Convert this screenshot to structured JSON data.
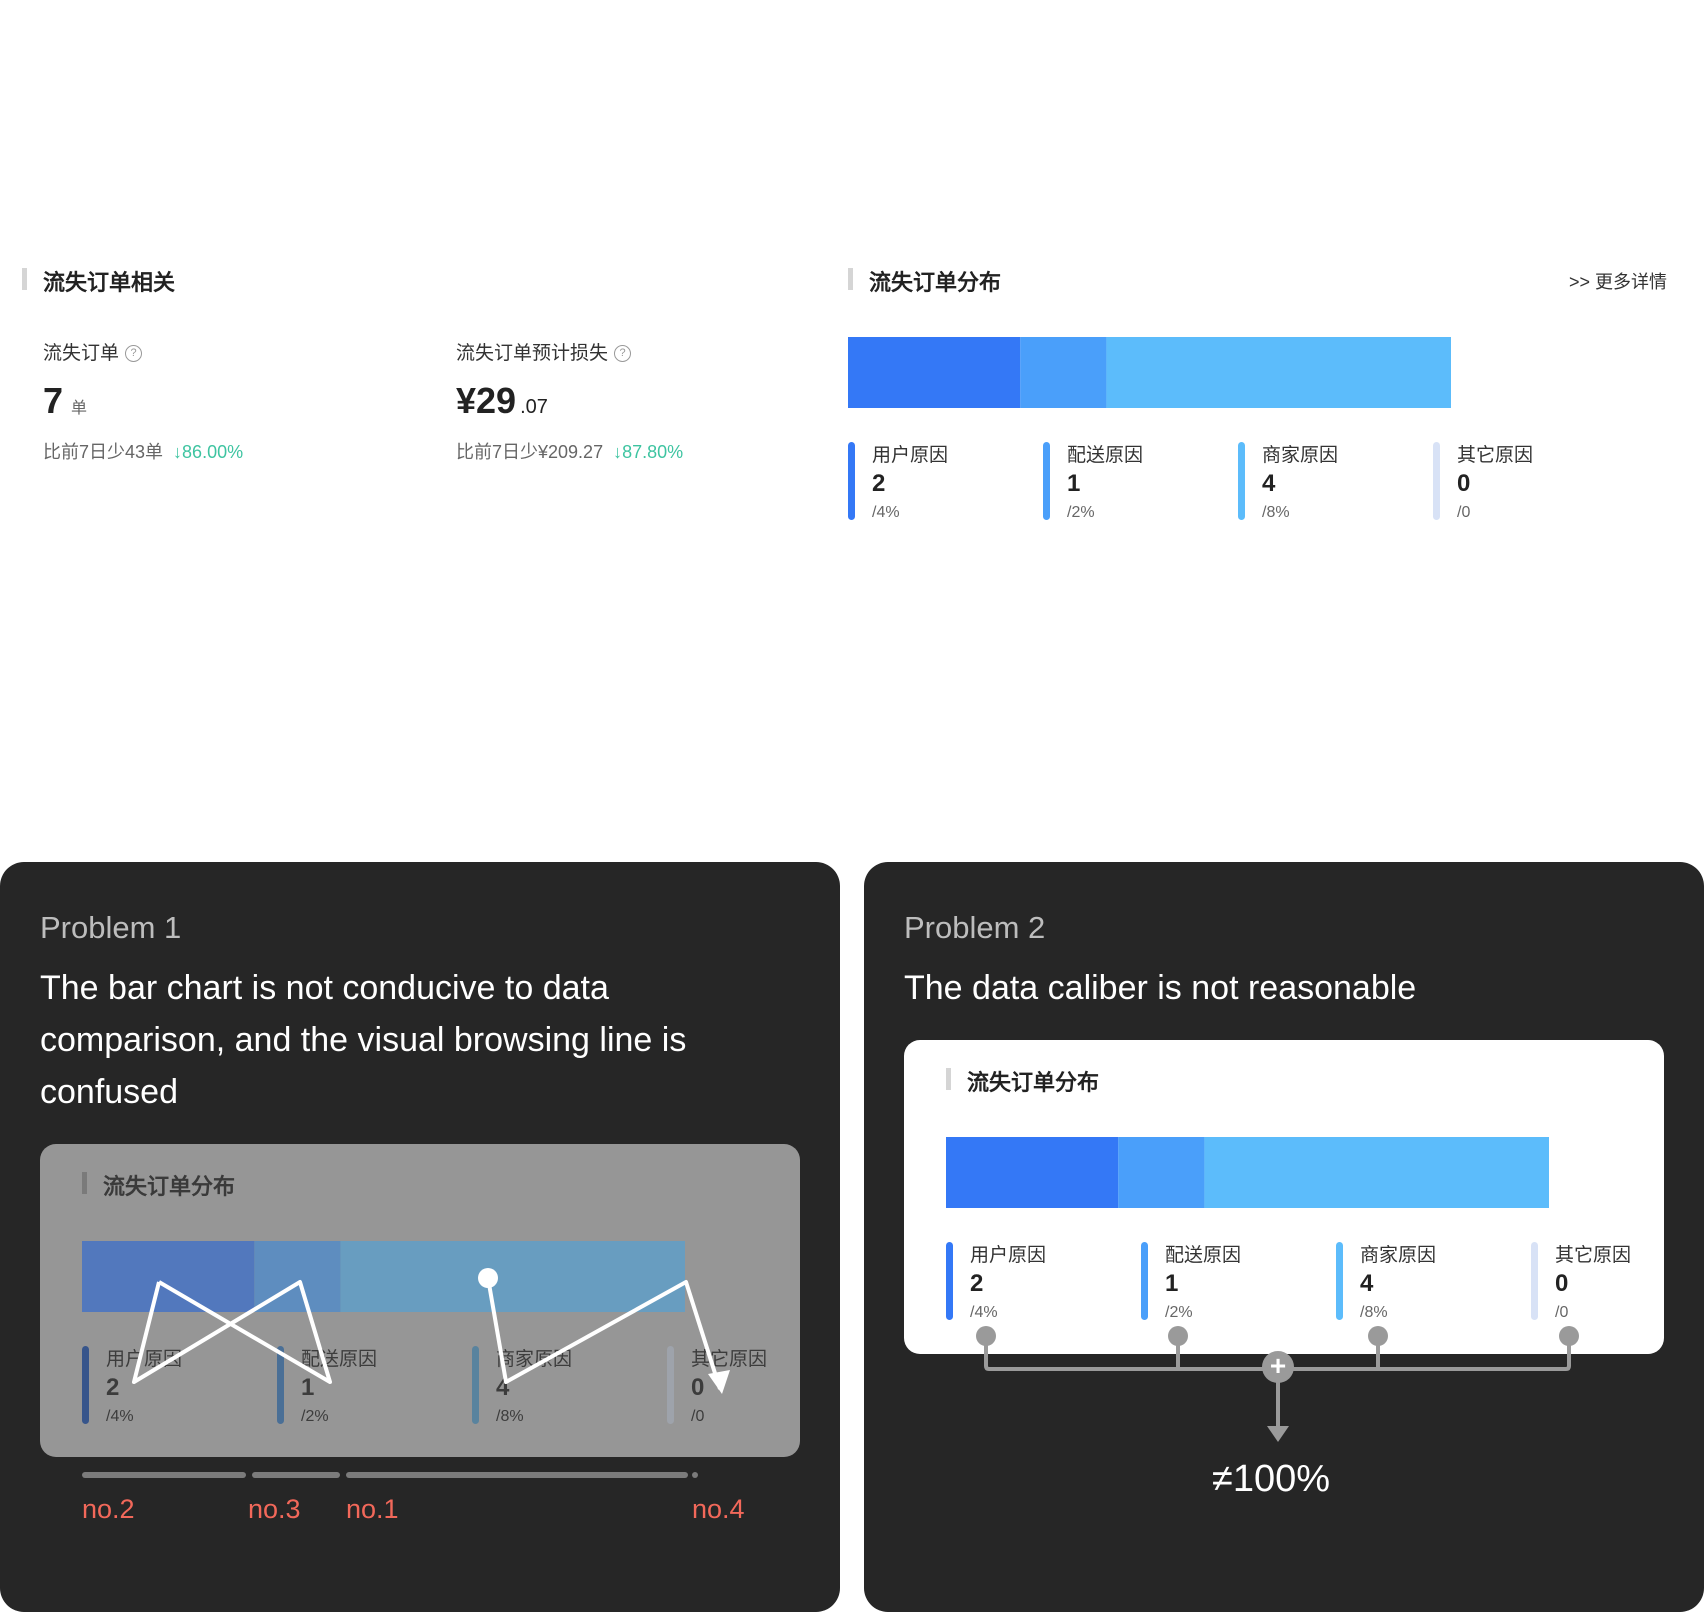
{
  "top": {
    "left_section_title": "流失订单相关",
    "right_section_title": "流失订单分布",
    "more_link": ">> 更多详情",
    "metric1": {
      "label": "流失订单",
      "help": "?",
      "value": "7",
      "unit": "单",
      "compare": "比前7日少43单",
      "trend": "↓86.00%"
    },
    "metric2": {
      "label": "流失订单预计损失",
      "help": "?",
      "value": "¥29",
      "decimal": ".07",
      "compare": "比前7日少¥209.27",
      "trend": "↓87.80%"
    }
  },
  "distribution": {
    "title": "流失订单分布",
    "legend": [
      {
        "name": "用户原因",
        "value": "2",
        "pct": "/4%",
        "color": "#3478f6"
      },
      {
        "name": "配送原因",
        "value": "1",
        "pct": "/2%",
        "color": "#4a9ffa"
      },
      {
        "name": "商家原因",
        "value": "4",
        "pct": "/8%",
        "color": "#5cbcfb"
      },
      {
        "name": "其它原因",
        "value": "0",
        "pct": "/0",
        "color": "#d8e2f6"
      }
    ]
  },
  "chart_data": {
    "type": "bar",
    "orientation": "stacked-horizontal",
    "categories": [
      "用户原因",
      "配送原因",
      "商家原因",
      "其它原因"
    ],
    "values": [
      2,
      1,
      4,
      0
    ],
    "title": "流失订单分布"
  },
  "problem1": {
    "label": "Problem 1",
    "title": "The bar chart is not conducive to data comparison, and the visual browsing line is confused",
    "ranks": [
      "no.2",
      "no.3",
      "no.1",
      "no.4"
    ]
  },
  "problem2": {
    "label": "Problem 2",
    "title": "The data caliber is not reasonable",
    "plus": "+",
    "result": "≠100%"
  },
  "colors": {
    "panel_bg": "#262626",
    "accent_red": "#f2685a",
    "trend_green": "#3ec4a1",
    "overlay_grey": "#969696"
  }
}
